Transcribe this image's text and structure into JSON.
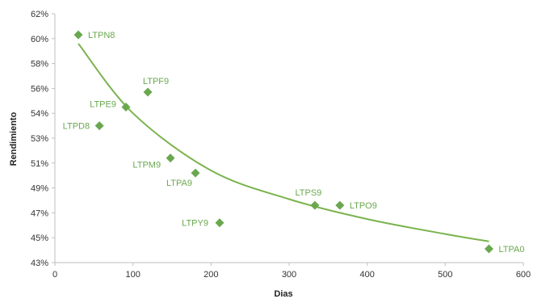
{
  "chart_data": {
    "type": "scatter",
    "title": "",
    "xlabel": "Dias",
    "ylabel": "Rendimiento",
    "xlim": [
      0,
      600
    ],
    "ylim": [
      43,
      62
    ],
    "x_ticks": [
      0,
      100,
      200,
      300,
      400,
      500,
      600
    ],
    "y_ticks": [
      43,
      45,
      47,
      49,
      51,
      53,
      54,
      56,
      58,
      60,
      62
    ],
    "x_tick_labels": [
      "0",
      "100",
      "200",
      "300",
      "400",
      "500",
      "600"
    ],
    "y_tick_labels": [
      "43%",
      "45%",
      "47%",
      "49%",
      "51%",
      "53%",
      "54%",
      "56%",
      "58%",
      "60%",
      "62%"
    ],
    "grid": false,
    "legend": "none",
    "points": [
      {
        "label": "LTPN8",
        "x": 30,
        "y": 60.3
      },
      {
        "label": "LTPD8",
        "x": 57,
        "y": 53.5
      },
      {
        "label": "LTPE9",
        "x": 91,
        "y": 54.5
      },
      {
        "label": "LTPF9",
        "x": 119,
        "y": 55.7
      },
      {
        "label": "LTPM9",
        "x": 148,
        "y": 51.4
      },
      {
        "label": "LTPA9",
        "x": 180,
        "y": 50.2
      },
      {
        "label": "LTPY9",
        "x": 211,
        "y": 46.2
      },
      {
        "label": "LTPS9",
        "x": 333,
        "y": 47.6
      },
      {
        "label": "LTPO9",
        "x": 365,
        "y": 47.6
      },
      {
        "label": "LTPA0",
        "x": 556,
        "y": 44.1
      }
    ],
    "trendline": {
      "type": "logarithmic",
      "points": [
        {
          "x": 30,
          "y": 59.6
        },
        {
          "x": 100,
          "y": 54.0
        },
        {
          "x": 200,
          "y": 50.4
        },
        {
          "x": 300,
          "y": 48.1
        },
        {
          "x": 400,
          "y": 46.5
        },
        {
          "x": 500,
          "y": 45.3
        },
        {
          "x": 556,
          "y": 44.7
        }
      ]
    },
    "colors": {
      "marker": "#6aa84f",
      "trendline": "#7ab34e",
      "label": "#6aa84f",
      "axis": "#bfbfbf"
    }
  }
}
